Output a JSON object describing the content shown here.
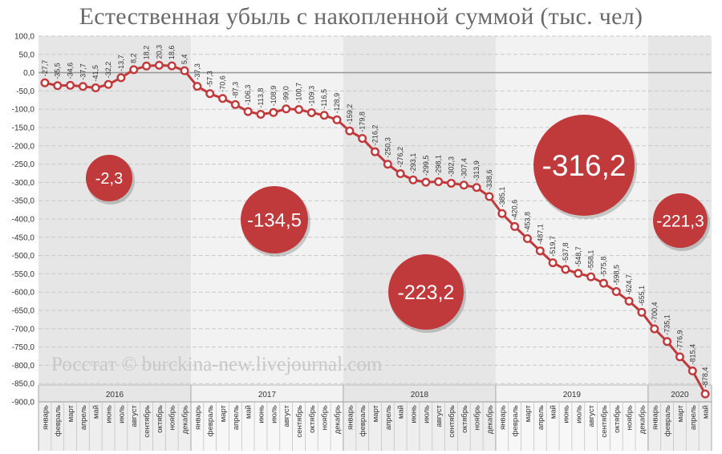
{
  "title": "Естественная убыль с накопленной суммой (тыс. чел)",
  "watermark": "Росстат © burckina-new.livejournal.com",
  "colors": {
    "line": "#c0393b",
    "bubble": "#c0393b",
    "band_dark": "#e6e6e6",
    "band_light": "#f2f2f2",
    "grid": "#c8c8c8",
    "zero": "#9a9a9a"
  },
  "chart_data": {
    "type": "line",
    "title": "Естественная убыль с накопленной суммой (тыс. чел)",
    "ylim": [
      -900,
      100
    ],
    "ytick_step": 50,
    "grid": true,
    "months": [
      "январь",
      "февраль",
      "март",
      "апрель",
      "май",
      "июнь",
      "июль",
      "август",
      "сентябрь",
      "октябрь",
      "ноябрь",
      "декабрь",
      "январь",
      "февраль",
      "март",
      "апрель",
      "май",
      "июнь",
      "июль",
      "август",
      "сентябрь",
      "октябрь",
      "ноябрь",
      "декабрь",
      "январь",
      "февраль",
      "март",
      "апрель",
      "май",
      "июнь",
      "июль",
      "август",
      "сентябрь",
      "октябрь",
      "ноябрь",
      "декабрь",
      "январь",
      "февраль",
      "март",
      "апрель",
      "май",
      "июнь",
      "июль",
      "август",
      "сентябрь",
      "октябрь",
      "ноябрь",
      "декабрь",
      "январь",
      "февраль",
      "март",
      "апрель",
      "май"
    ],
    "values": [
      -27.7,
      -35.5,
      -34.6,
      -37.7,
      -41.5,
      -32.2,
      -13.7,
      8.2,
      18.2,
      20.3,
      18.6,
      5.4,
      -37.3,
      -57.3,
      -70.6,
      -87.3,
      -106.3,
      -113.8,
      -108.9,
      -99.0,
      -100.7,
      -109.3,
      -116.5,
      -128.9,
      -159.2,
      -179.8,
      -216.2,
      -250.3,
      -276.2,
      -293.1,
      -299.5,
      -298.1,
      -302.3,
      -307.4,
      -313.9,
      -338.6,
      -385.1,
      -420.6,
      -453.8,
      -487.1,
      -519.7,
      -537.8,
      -548.7,
      -558.1,
      -575.8,
      -598.5,
      -624.7,
      -655.1,
      -700.4,
      -735.1,
      -776.9,
      -815.4,
      -878.4
    ],
    "labels": [
      "-27,7",
      "-35,5",
      "-34,6",
      "-37,7",
      "-41,5",
      "-32,2",
      "-13,7",
      "8,2",
      "18,2",
      "20,3",
      "18,6",
      "5,4",
      "-37,3",
      "-57,3",
      "-70,6",
      "-87,3",
      "-106,3",
      "-113,8",
      "-108,9",
      "-99,0",
      "-100,7",
      "-109,3",
      "-116,5",
      "-128,9",
      "-159,2",
      "-179,8",
      "-216,2",
      "-250,3",
      "-276,2",
      "-293,1",
      "-299,5",
      "-298,1",
      "-302,3",
      "-307,4",
      "-313,9",
      "-338,6",
      "-385,1",
      "-420,6",
      "-453,8",
      "-487,1",
      "-519,7",
      "-537,8",
      "-548,7",
      "-558,1",
      "-575,8",
      "-598,5",
      "-624,7",
      "-655,1",
      "-700,4",
      "-735,1",
      "-776,9",
      "-815,4",
      "-878,4"
    ],
    "ytick_labels": [
      "100,0",
      "50,0",
      "0,0",
      "-50,0",
      "-100,0",
      "-150,0",
      "-200,0",
      "-250,0",
      "-300,0",
      "-350,0",
      "-400,0",
      "-450,0",
      "-500,0",
      "-550,0",
      "-600,0",
      "-650,0",
      "-700,0",
      "-750,0",
      "-800,0",
      "-850,0",
      "-900,0"
    ],
    "years": [
      {
        "label": "2016",
        "start": 0,
        "count": 12
      },
      {
        "label": "2017",
        "start": 12,
        "count": 12
      },
      {
        "label": "2018",
        "start": 24,
        "count": 12
      },
      {
        "label": "2019",
        "start": 36,
        "count": 12
      },
      {
        "label": "2020",
        "start": 48,
        "count": 5
      }
    ],
    "annual_totals": [
      {
        "year": "2016",
        "text": "-2,3",
        "value": -2.3
      },
      {
        "year": "2017",
        "text": "-134,5",
        "value": -134.5
      },
      {
        "year": "2018",
        "text": "-223,2",
        "value": -223.2
      },
      {
        "year": "2019",
        "text": "-316,2",
        "value": -316.2
      },
      {
        "year": "2020",
        "text": "-221,3",
        "value": -221.3
      }
    ]
  }
}
